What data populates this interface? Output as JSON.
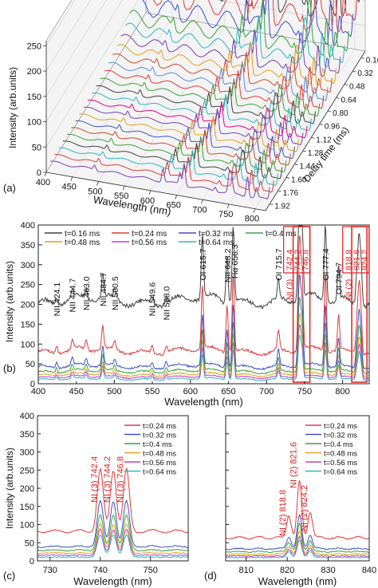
{
  "chart_data": [
    {
      "panel": "(a)",
      "type": "line",
      "view": "3d-waterfall",
      "xlabel": "Wavelength (nm)",
      "ylabel": "Intensity (arb.units)",
      "zlabel": "Delay time (ms)",
      "x_ticks": [
        "450",
        "500",
        "550",
        "600",
        "650",
        "700",
        "750",
        "800"
      ],
      "y_ticks": [
        "0",
        "50",
        "100",
        "150",
        "200",
        "250"
      ],
      "z_ticks": [
        "0.16",
        "0.32",
        "0.48",
        "0.64",
        "0.80",
        "0.96",
        "1.12",
        "1.28",
        "1.44",
        "1.60",
        "1.76",
        "1.92"
      ],
      "xlim": [
        400,
        820
      ],
      "ylim": [
        0,
        260
      ],
      "zlim": [
        0.08,
        2.0
      ],
      "delays": [
        0.08,
        0.16,
        0.24,
        0.32,
        0.4,
        0.48,
        0.56,
        0.64,
        0.72,
        0.8,
        0.88,
        0.96,
        1.04,
        1.12,
        1.2,
        1.28,
        1.36,
        1.44,
        1.52,
        1.6,
        1.68,
        1.76,
        1.84,
        1.92
      ],
      "series_colors": [
        "#e6007e",
        "#404040",
        "#e03a3a",
        "#3f51c8",
        "#3aa33a",
        "#2bb5c6",
        "#7b3fb0",
        "#e3a01b",
        "#d0482a",
        "#5a8dd6",
        "#e03a3a",
        "#3aa33a",
        "#404040",
        "#2bb5c6",
        "#e6007e",
        "#7b3fb0",
        "#e3a01b",
        "#3f51c8",
        "#d0482a",
        "#3aa33a",
        "#404040",
        "#2bb5c6",
        "#e03a3a",
        "#7b3fb0"
      ]
    },
    {
      "panel": "(b)",
      "type": "line",
      "xlabel": "Wavelength (nm)",
      "ylabel": "Intensity (arb.units)",
      "xlim": [
        400,
        835
      ],
      "ylim": [
        0,
        400
      ],
      "x_ticks": [
        "400",
        "500",
        "600",
        "700",
        "800"
      ],
      "x_minor": [
        "450",
        "550",
        "650",
        "750"
      ],
      "y_ticks": [
        "0",
        "50",
        "100",
        "150",
        "200",
        "250",
        "300",
        "350",
        "400"
      ],
      "legend": [
        "t=0.16 ms",
        "t=0.24 ms",
        "t=0.32 ms",
        "t=0.4 ms",
        "t=0.48 ms",
        "t=0.56 ms",
        "t=0.64 ms"
      ],
      "series": [
        {
          "name": "t=0.16 ms",
          "color": "#404040",
          "base": 205,
          "scale": 1.0
        },
        {
          "name": "t=0.24 ms",
          "color": "#e03a3a",
          "base": 80,
          "scale": 0.62
        },
        {
          "name": "t=0.32 ms",
          "color": "#3f51c8",
          "base": 42,
          "scale": 0.42
        },
        {
          "name": "t=0.4 ms",
          "color": "#3aa33a",
          "base": 30,
          "scale": 0.34
        },
        {
          "name": "t=0.48 ms",
          "color": "#e3a01b",
          "base": 22,
          "scale": 0.28
        },
        {
          "name": "t=0.56 ms",
          "color": "#c23fc4",
          "base": 16,
          "scale": 0.24
        },
        {
          "name": "t=0.64 ms",
          "color": "#2bb5c6",
          "base": 11,
          "scale": 0.2
        }
      ],
      "peaks": [
        [
          424.1,
          18
        ],
        [
          444.7,
          22
        ],
        [
          463.0,
          24
        ],
        [
          484.7,
          60
        ],
        [
          500.5,
          20
        ],
        [
          549.6,
          18
        ],
        [
          568.0,
          18
        ],
        [
          615.7,
          160
        ],
        [
          648.2,
          120
        ],
        [
          656.3,
          200
        ],
        [
          715.7,
          50
        ],
        [
          742.4,
          180
        ],
        [
          744.2,
          170
        ],
        [
          746.8,
          180
        ],
        [
          777.4,
          200
        ],
        [
          794.7,
          90
        ],
        [
          818.8,
          80
        ],
        [
          821.6,
          160
        ],
        [
          824.2,
          100
        ]
      ],
      "annotations": [
        {
          "text": "NII 424.1",
          "x": 424.1,
          "y": 170
        },
        {
          "text": "NII 444.7",
          "x": 444.7,
          "y": 180
        },
        {
          "text": "NII 463.0",
          "x": 463.0,
          "y": 185
        },
        {
          "text": "NII 484.7",
          "x": 484.7,
          "y": 195
        },
        {
          "text": "NII 500.5",
          "x": 500.5,
          "y": 185
        },
        {
          "text": "NII 549.6",
          "x": 549.6,
          "y": 170
        },
        {
          "text": "NII 568.0",
          "x": 568.0,
          "y": 160
        },
        {
          "text": "OI 615.7",
          "x": 615.7,
          "y": 260
        },
        {
          "text": "NII 648.2",
          "x": 648.2,
          "y": 255
        },
        {
          "text": "Hα 656.3",
          "x": 658.0,
          "y": 265
        },
        {
          "text": "OI 715.7",
          "x": 715.7,
          "y": 260
        },
        {
          "text": "OI 777.4",
          "x": 777.4,
          "y": 260
        },
        {
          "text": "OI 794.7",
          "x": 794.7,
          "y": 225
        }
      ],
      "boxed_labels": [
        {
          "prefix": "NI (3)",
          "lines": [
            "742.4",
            "744.2",
            "746.8"
          ]
        },
        {
          "prefix": "NI (2)",
          "lines": [
            "818.8",
            "821.6",
            "824.2"
          ]
        }
      ],
      "highlight_ranges": [
        [
          735,
          757
        ],
        [
          812,
          832
        ]
      ]
    },
    {
      "panel": "(c)",
      "type": "line",
      "xlabel": "Wavelength (nm)",
      "ylabel": "Intensity (arb.units)",
      "xlim": [
        727.5,
        757.5
      ],
      "ylim": [
        0,
        400
      ],
      "x_ticks": [
        "730",
        "740",
        "750"
      ],
      "y_ticks": [
        "0",
        "50",
        "100",
        "150",
        "200",
        "250",
        "300",
        "350",
        "400"
      ],
      "legend": [
        "t=0.24 ms",
        "t=0.32 ms",
        "t=0.4 ms",
        "t=0.48 ms",
        "t=0.56 ms",
        "t=0.64 ms"
      ],
      "labels": [
        "NI (3) 742.4",
        "NI (3) 744.2",
        "NI (3) 746.8"
      ],
      "series": [
        {
          "name": "t=0.24 ms",
          "color": "#e03a3a",
          "base": 80,
          "peak": 250
        },
        {
          "name": "t=0.32 ms",
          "color": "#3f51c8",
          "base": 38,
          "peak": 165
        },
        {
          "name": "t=0.4 ms",
          "color": "#3aa33a",
          "base": 28,
          "peak": 125
        },
        {
          "name": "t=0.48 ms",
          "color": "#e3a01b",
          "base": 20,
          "peak": 100
        },
        {
          "name": "t=0.56 ms",
          "color": "#c23fc4",
          "base": 14,
          "peak": 85
        },
        {
          "name": "t=0.64 ms",
          "color": "#2bb5c6",
          "base": 9,
          "peak": 70
        }
      ],
      "peak_positions": [
        740.0,
        742.6,
        745.2
      ]
    },
    {
      "panel": "(d)",
      "type": "line",
      "xlabel": "Wavelength (nm)",
      "xlim": [
        805,
        840
      ],
      "ylim": [
        0,
        400
      ],
      "x_ticks": [
        "810",
        "820",
        "830",
        "840"
      ],
      "legend": [
        "t=0.24 ms",
        "t=0.32 ms",
        "t=0.4 ms",
        "t=0.48 ms",
        "t=0.56 ms",
        "t=0.64 ms"
      ],
      "labels": [
        "NI (2) 818.8",
        "NI (2) 821.6",
        "NI (2) 824.2"
      ],
      "series": [
        {
          "name": "t=0.24 ms",
          "color": "#e03a3a",
          "base": 62,
          "peak": [
            125,
            218,
            135
          ]
        },
        {
          "name": "t=0.32 ms",
          "color": "#3f51c8",
          "base": 32,
          "peak": [
            65,
            125,
            70
          ]
        },
        {
          "name": "t=0.4 ms",
          "color": "#3aa33a",
          "base": 24,
          "peak": [
            50,
            100,
            55
          ]
        },
        {
          "name": "t=0.48 ms",
          "color": "#e3a01b",
          "base": 17,
          "peak": [
            38,
            80,
            42
          ]
        },
        {
          "name": "t=0.56 ms",
          "color": "#c23fc4",
          "base": 12,
          "peak": [
            30,
            65,
            34
          ]
        },
        {
          "name": "t=0.64 ms",
          "color": "#2bb5c6",
          "base": 8,
          "peak": [
            24,
            55,
            27
          ]
        }
      ],
      "peak_positions": [
        820.4,
        823.0,
        825.6
      ]
    }
  ]
}
